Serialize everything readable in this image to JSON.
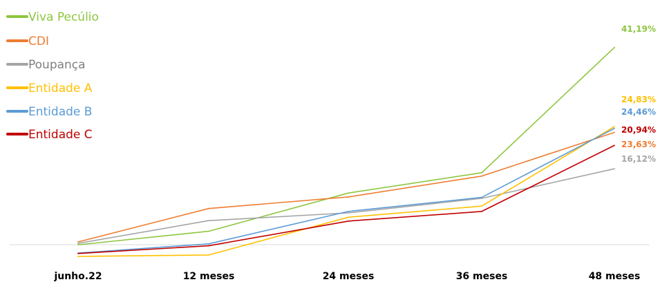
{
  "chart_data": {
    "type": "line",
    "categories": [
      "junho.22",
      "12 meses",
      "24 meses",
      "36 meses",
      "48 meses"
    ],
    "ylim": [
      -2,
      45
    ],
    "grid": false,
    "legend_position": "top-left",
    "series": [
      {
        "name": "Viva Pecúlio",
        "color": "#8dc63f",
        "values": [
          0.4,
          3.2,
          11.1,
          15.3,
          41.19
        ],
        "end_label": "41,19%"
      },
      {
        "name": "CDI",
        "color": "#ed7d31",
        "values": [
          1.0,
          7.9,
          10.3,
          14.6,
          23.63
        ],
        "end_label": "23,63%"
      },
      {
        "name": "Poupança",
        "color": "#a5a5a5",
        "values": [
          0.7,
          5.4,
          7.0,
          10.0,
          16.12
        ],
        "end_label": "16,12%"
      },
      {
        "name": "Entidade A",
        "color": "#ffc000",
        "values": [
          -2.0,
          -1.7,
          6.1,
          8.4,
          24.83
        ],
        "end_label": "24,83%"
      },
      {
        "name": "Entidade B",
        "color": "#5b9bd5",
        "values": [
          -1.3,
          0.6,
          7.3,
          10.2,
          24.46
        ],
        "end_label": "24,46%"
      },
      {
        "name": "Entidade C",
        "color": "#c00000",
        "values": [
          -1.4,
          0.2,
          5.3,
          7.3,
          20.94
        ],
        "end_label": "20,94%"
      }
    ]
  }
}
